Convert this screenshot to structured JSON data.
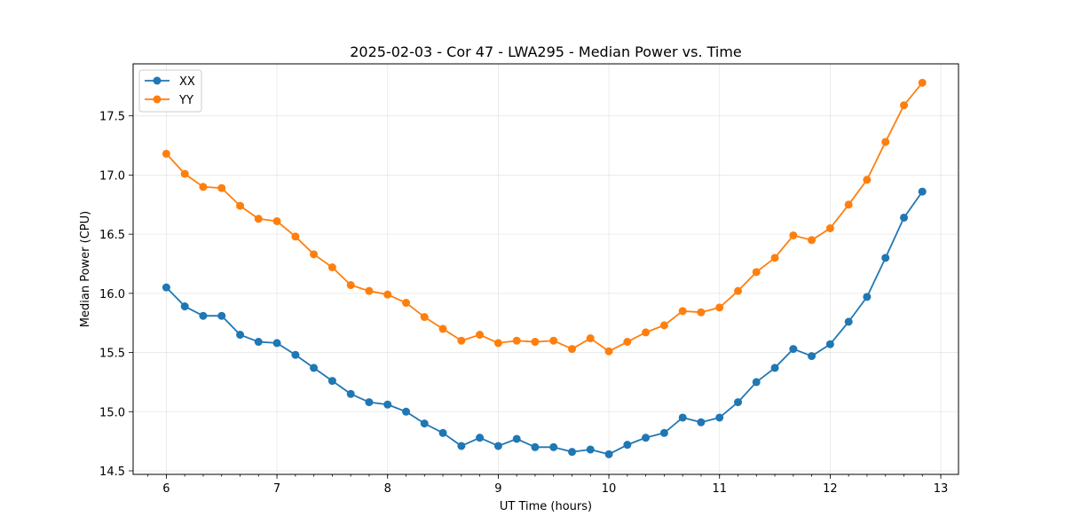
{
  "chart_data": {
    "type": "line",
    "title": "2025-02-03 - Cor 47 - LWA295 - Median Power vs. Time",
    "xlabel": "UT Time (hours)",
    "ylabel": "Median Power (CPU)",
    "xlim": [
      5.7,
      13.16
    ],
    "ylim": [
      14.47,
      17.94
    ],
    "xticks": [
      6,
      7,
      8,
      9,
      10,
      11,
      12,
      13
    ],
    "xtick_labels": [
      "6",
      "7",
      "8",
      "9",
      "10",
      "11",
      "12",
      "13"
    ],
    "yticks": [
      14.5,
      15.0,
      15.5,
      16.0,
      16.5,
      17.0,
      17.5
    ],
    "ytick_labels": [
      "14.5",
      "15.0",
      "15.5",
      "16.0",
      "16.5",
      "17.0",
      "17.5"
    ],
    "grid": true,
    "legend_location": "upper-left",
    "x": [
      6.0,
      6.167,
      6.333,
      6.5,
      6.667,
      6.833,
      7.0,
      7.167,
      7.333,
      7.5,
      7.667,
      7.833,
      8.0,
      8.167,
      8.333,
      8.5,
      8.667,
      8.833,
      9.0,
      9.167,
      9.333,
      9.5,
      9.667,
      9.833,
      10.0,
      10.167,
      10.333,
      10.5,
      10.667,
      10.833,
      11.0,
      11.167,
      11.333,
      11.5,
      11.667,
      11.833,
      12.0,
      12.167,
      12.333,
      12.5,
      12.667,
      12.833
    ],
    "series": [
      {
        "name": "XX",
        "color": "#1f77b4",
        "values": [
          16.05,
          15.89,
          15.81,
          15.81,
          15.65,
          15.59,
          15.58,
          15.48,
          15.37,
          15.26,
          15.15,
          15.08,
          15.06,
          15.0,
          14.9,
          14.82,
          14.71,
          14.78,
          14.71,
          14.77,
          14.7,
          14.7,
          14.66,
          14.68,
          14.64,
          14.72,
          14.78,
          14.82,
          14.95,
          14.91,
          14.95,
          15.08,
          15.25,
          15.37,
          15.53,
          15.47,
          15.57,
          15.76,
          15.97,
          16.3,
          16.64,
          16.86
        ]
      },
      {
        "name": "YY",
        "color": "#ff7f0e",
        "values": [
          17.18,
          17.01,
          16.9,
          16.89,
          16.74,
          16.63,
          16.61,
          16.48,
          16.33,
          16.22,
          16.07,
          16.02,
          15.99,
          15.92,
          15.8,
          15.7,
          15.6,
          15.65,
          15.58,
          15.6,
          15.59,
          15.6,
          15.53,
          15.62,
          15.51,
          15.59,
          15.67,
          15.73,
          15.85,
          15.84,
          15.88,
          16.02,
          16.18,
          16.3,
          16.49,
          16.45,
          16.55,
          16.75,
          16.96,
          17.28,
          17.59,
          17.78
        ]
      }
    ]
  }
}
